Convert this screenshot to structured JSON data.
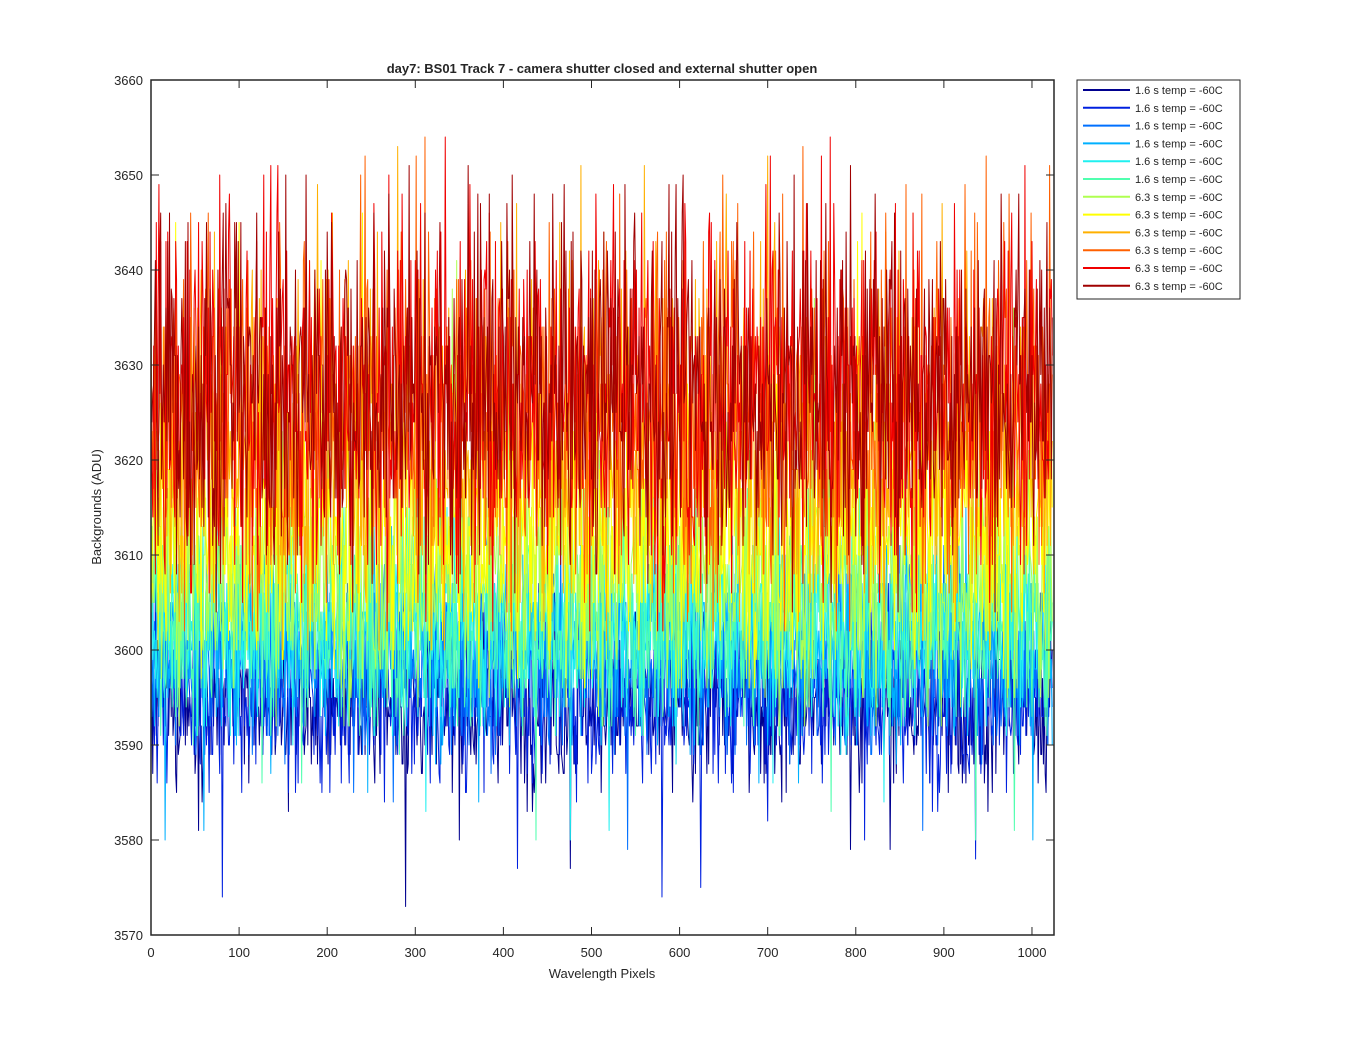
{
  "chart_data": {
    "type": "line",
    "title": "day7: BS01  Track 7 - camera shutter closed and external shutter open",
    "xlabel": "Wavelength Pixels",
    "ylabel": "Backgrounds (ADU)",
    "xlim": [
      0,
      1025
    ],
    "ylim": [
      3570,
      3660
    ],
    "xticks": [
      0,
      100,
      200,
      300,
      400,
      500,
      600,
      700,
      800,
      900,
      1000
    ],
    "yticks": [
      3570,
      3580,
      3590,
      3600,
      3610,
      3620,
      3630,
      3640,
      3650,
      3660
    ],
    "grid": false,
    "legend_position": "outside-top-right",
    "n_points": 1024,
    "series": [
      {
        "name": "1.6 s temp = -60C",
        "color": "#00008F",
        "mean": 3594.5,
        "min": 3573,
        "max": 3606
      },
      {
        "name": "1.6 s temp = -60C",
        "color": "#0020DF",
        "mean": 3595.5,
        "min": 3574,
        "max": 3608
      },
      {
        "name": "1.6 s temp = -60C",
        "color": "#0070FF",
        "mean": 3599.5,
        "min": 3579,
        "max": 3612
      },
      {
        "name": "1.6 s temp = -60C",
        "color": "#00B0FF",
        "mean": 3601.5,
        "min": 3580,
        "max": 3615
      },
      {
        "name": "1.6 s temp = -60C",
        "color": "#20F0F0",
        "mean": 3602.5,
        "min": 3580,
        "max": 3616
      },
      {
        "name": "1.6 s temp = -60C",
        "color": "#50FFAF",
        "mean": 3603.5,
        "min": 3580,
        "max": 3618
      },
      {
        "name": "6.3 s temp = -60C",
        "color": "#AFFF50",
        "mean": 3608.5,
        "min": 3592,
        "max": 3644
      },
      {
        "name": "6.3 s temp = -60C",
        "color": "#FFFF00",
        "mean": 3613.5,
        "min": 3596,
        "max": 3649
      },
      {
        "name": "6.3 s temp = -60C",
        "color": "#FFB000",
        "mean": 3622.5,
        "min": 3600,
        "max": 3655
      },
      {
        "name": "6.3 s temp = -60C",
        "color": "#FF6000",
        "mean": 3625.5,
        "min": 3602,
        "max": 3655
      },
      {
        "name": "6.3 s temp = -60C",
        "color": "#F00000",
        "mean": 3627,
        "min": 3602,
        "max": 3654
      },
      {
        "name": "6.3 s temp = -60C",
        "color": "#A00000",
        "mean": 3627.5,
        "min": 3604,
        "max": 3651
      }
    ]
  }
}
